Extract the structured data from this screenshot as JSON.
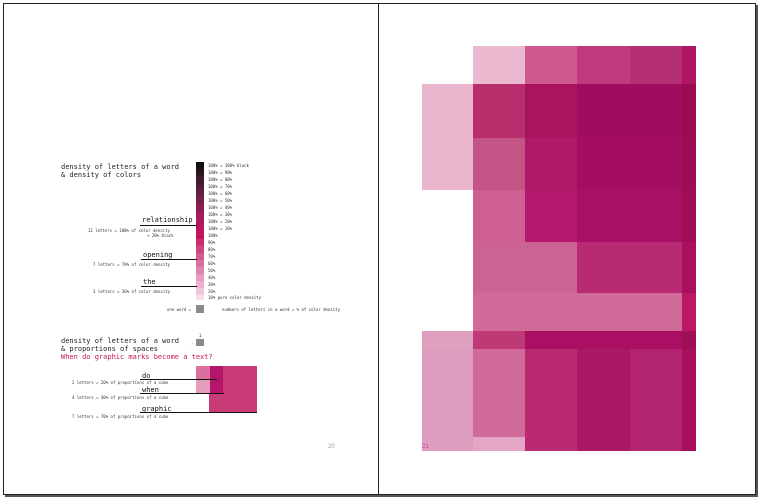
{
  "left_page": {
    "section1": {
      "title_line1": "density of letters of a word",
      "title_line2": "& density of colors",
      "scale_labels": [
        "100% = 100% black",
        "100% = 90%",
        "100% = 80%",
        "100% = 70%",
        "100% = 60%",
        "100% = 50%",
        "100% = 40%",
        "100% = 30%",
        "100% = 20%",
        "100% = 10%",
        "100%",
        "90%",
        "80%",
        "70%",
        "60%",
        "50%",
        "40%",
        "30%",
        "20%",
        "10% pure color density"
      ],
      "words": [
        {
          "word": "relationship",
          "desc": "12 letters = 100% of color density",
          "desc2": "+ 20% black"
        },
        {
          "word": "opening",
          "desc": "7 letters = 70% of color density",
          "desc2": ""
        },
        {
          "word": "the",
          "desc": "3 letters = 30% of color density",
          "desc2": ""
        }
      ],
      "one_word_label": "one word =",
      "one_word_desc": "numbers of letters in a word = % of color density"
    },
    "section2": {
      "title_line1": "density of letters of a word",
      "title_line2": "& proportions of spaces",
      "subtitle": "When do graphic marks become a text?",
      "unit_label": "1",
      "words": [
        {
          "word": "do",
          "desc": "2 letters = 20% of proportions of a cube"
        },
        {
          "word": "when",
          "desc": "4 letters = 40% of proportions of a cube"
        },
        {
          "word": "graphic",
          "desc": "7 letters = 70% of proportions of a cube"
        }
      ]
    },
    "page_number": "20"
  },
  "right_page": {
    "page_number": "21"
  },
  "colors": {
    "accent": "#c4145c",
    "rows": [
      "#e9b8cf",
      "#d46a9c",
      "#c83f7f",
      "#b5166b",
      "#a70d61",
      "#a30e62",
      "#c75a92",
      "#e8aac8"
    ]
  }
}
